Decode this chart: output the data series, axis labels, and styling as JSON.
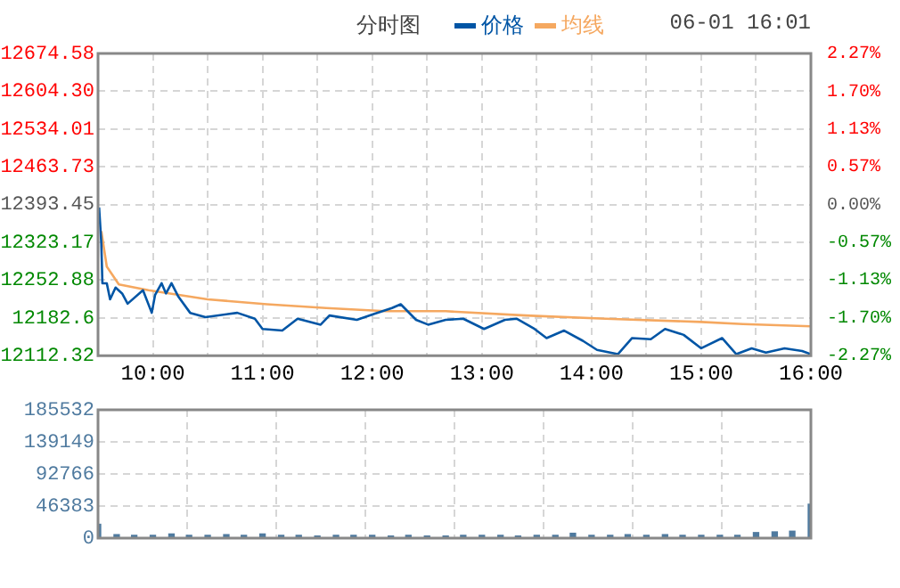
{
  "chart_data": [
    {
      "type": "line",
      "title": "分时图",
      "annotations": [
        "06-01 16:01"
      ],
      "legend": "top",
      "grid": true,
      "xlim": [
        9.5,
        16
      ],
      "xticks": [
        {
          "value": 10,
          "label": "10:00"
        },
        {
          "value": 10.5,
          "label": null
        },
        {
          "value": 11,
          "label": "11:00"
        },
        {
          "value": 11.5,
          "label": null
        },
        {
          "value": 12,
          "label": "12:00"
        },
        {
          "value": 12.5,
          "label": null
        },
        {
          "value": 13,
          "label": "13:00"
        },
        {
          "value": 13.5,
          "label": null
        },
        {
          "value": 14,
          "label": "14:00"
        },
        {
          "value": 14.5,
          "label": null
        },
        {
          "value": 15,
          "label": "15:00"
        },
        {
          "value": 15.5,
          "label": null
        },
        {
          "value": 16,
          "label": "16:00"
        }
      ],
      "ylim": [
        12112.32,
        12674.58
      ],
      "yticks": [
        12112.32,
        12182.6,
        {
          "value": 12252.88,
          "label": "12252.88"
        },
        12323.17,
        12393.45,
        12463.73,
        12534.01,
        {
          "value": 12604.3,
          "label": "12604.30"
        },
        12674.58
      ],
      "y2lim": [
        -2.27,
        2.27
      ],
      "y2ticks": [
        {
          "value": -2.27,
          "label": "-2.27%"
        },
        {
          "value": -1.7,
          "label": "-1.70%"
        },
        {
          "value": -1.13,
          "label": "-1.13%"
        },
        {
          "value": -0.57,
          "label": "-0.57%"
        },
        {
          "value": 0,
          "label": "0.00%"
        },
        {
          "value": 0.57,
          "label": "0.57%"
        },
        {
          "value": 1.13,
          "label": "1.13%"
        },
        {
          "value": 1.7,
          "label": "1.70%"
        },
        {
          "value": 2.27,
          "label": "2.27%"
        }
      ],
      "series": [
        {
          "name": "价格",
          "color": "#0055a5",
          "x": [
            9.51,
            9.53,
            9.54,
            9.58,
            9.61,
            9.66,
            9.72,
            9.77,
            9.91,
            9.99,
            10.02,
            10.08,
            10.12,
            10.17,
            10.23,
            10.34,
            10.48,
            10.77,
            10.93,
            11.0,
            11.18,
            11.32,
            11.53,
            11.61,
            11.86,
            12.02,
            12.18,
            12.26,
            12.4,
            12.51,
            12.67,
            12.83,
            13.02,
            13.21,
            13.32,
            13.48,
            13.59,
            13.75,
            13.92,
            14.05,
            14.24,
            14.37,
            14.54,
            14.67,
            14.84,
            15.0,
            15.19,
            15.32,
            15.46,
            15.59,
            15.76,
            15.92,
            16.0
          ],
          "values": [
            12388,
            12322,
            12247,
            12247,
            12217,
            12239,
            12228,
            12209,
            12234,
            12192,
            12225,
            12247,
            12228,
            12247,
            12223,
            12192,
            12184,
            12192,
            12181,
            12162,
            12159,
            12181,
            12170,
            12187,
            12179,
            12190,
            12201,
            12208,
            12179,
            12170,
            12179,
            12181,
            12162,
            12179,
            12181,
            12162,
            12145,
            12159,
            12140,
            12123,
            12115,
            12145,
            12143,
            12162,
            12151,
            12126,
            12145,
            12115,
            12126,
            12118,
            12126,
            12121,
            12115
          ]
        },
        {
          "name": "均线",
          "color": "#f5a860",
          "x": [
            9.53,
            9.58,
            9.69,
            9.96,
            10.5,
            11.04,
            11.58,
            12.12,
            12.67,
            13.4,
            14.13,
            15.0,
            15.38,
            16.0
          ],
          "values": [
            12344,
            12278,
            12245,
            12234,
            12217,
            12208,
            12201,
            12195,
            12195,
            12187,
            12181,
            12175,
            12171,
            12167
          ]
        }
      ]
    },
    {
      "type": "bar",
      "grid": true,
      "tick_labels": "y",
      "xlim": [
        9.5,
        16
      ],
      "xticks": [
        {
          "value": 10.3125,
          "label": null
        },
        {
          "value": 11.125,
          "label": null
        },
        {
          "value": 11.9375,
          "label": null
        },
        {
          "value": 12.75,
          "label": null
        },
        {
          "value": 13.5625,
          "label": null
        },
        {
          "value": 14.375,
          "label": null
        },
        {
          "value": 15.1875,
          "label": null
        }
      ],
      "ylim": [
        0,
        185532
      ],
      "yticks": [
        0,
        46383,
        92766,
        139149,
        185532
      ],
      "series": [
        {
          "color": "#4f7a9f",
          "x": [
            9.5,
            9.67,
            9.83,
            10,
            10.17,
            10.33,
            10.5,
            10.67,
            10.83,
            11,
            11.17,
            11.33,
            11.5,
            11.67,
            11.83,
            12,
            12.17,
            12.33,
            12.5,
            12.67,
            12.83,
            13,
            13.17,
            13.33,
            13.5,
            13.67,
            13.83,
            14,
            14.17,
            14.33,
            14.5,
            14.67,
            14.83,
            15,
            15.17,
            15.33,
            15.5,
            15.67,
            15.83,
            16
          ],
          "values": [
            20000,
            5000,
            4000,
            4000,
            6000,
            4000,
            4000,
            5000,
            4000,
            6000,
            4000,
            4000,
            3000,
            4000,
            4000,
            4000,
            3000,
            4000,
            3000,
            3000,
            4000,
            4000,
            4000,
            3000,
            4000,
            4000,
            7000,
            4000,
            4000,
            5000,
            4000,
            5000,
            4000,
            4000,
            4000,
            4000,
            8000,
            9000,
            10000,
            49000
          ]
        }
      ]
    }
  ]
}
